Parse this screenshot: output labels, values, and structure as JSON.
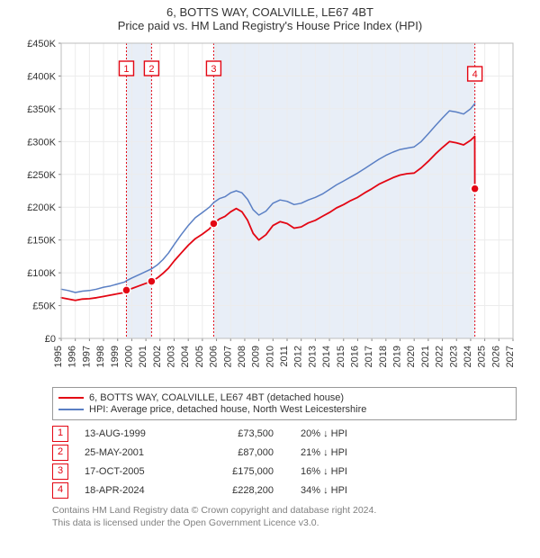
{
  "title_line1": "6, BOTTS WAY, COALVILLE, LE67 4BT",
  "title_line2": "Price paid vs. HM Land Registry's House Price Index (HPI)",
  "chart": {
    "type": "line",
    "x_domain": [
      1995,
      2027
    ],
    "y_domain": [
      0,
      450000
    ],
    "y_ticks": [
      0,
      50000,
      100000,
      150000,
      200000,
      250000,
      300000,
      350000,
      400000,
      450000
    ],
    "y_tick_labels": [
      "£0",
      "£50K",
      "£100K",
      "£150K",
      "£200K",
      "£250K",
      "£300K",
      "£350K",
      "£400K",
      "£450K"
    ],
    "x_ticks": [
      1995,
      1996,
      1997,
      1998,
      1999,
      2000,
      2001,
      2002,
      2003,
      2004,
      2005,
      2006,
      2007,
      2008,
      2009,
      2010,
      2011,
      2012,
      2013,
      2014,
      2015,
      2016,
      2017,
      2018,
      2019,
      2020,
      2021,
      2022,
      2023,
      2024,
      2025,
      2026,
      2027
    ],
    "grid_color": "#ececec",
    "plot_bg": "#ffffff",
    "band_color": "#e8eef7",
    "series": {
      "hpi": {
        "color": "#5a7fc4",
        "width": 1.5,
        "points": [
          [
            1995.0,
            75000
          ],
          [
            1995.5,
            73000
          ],
          [
            1996.0,
            70000
          ],
          [
            1996.5,
            72000
          ],
          [
            1997.0,
            73000
          ],
          [
            1997.5,
            75000
          ],
          [
            1998.0,
            78000
          ],
          [
            1998.5,
            80000
          ],
          [
            1999.0,
            83000
          ],
          [
            1999.5,
            86000
          ],
          [
            1999.62,
            88000
          ],
          [
            2000.0,
            92000
          ],
          [
            2000.5,
            97000
          ],
          [
            2001.0,
            102000
          ],
          [
            2001.4,
            106000
          ],
          [
            2001.8,
            112000
          ],
          [
            2002.2,
            120000
          ],
          [
            2002.6,
            130000
          ],
          [
            2003.0,
            143000
          ],
          [
            2003.5,
            158000
          ],
          [
            2004.0,
            172000
          ],
          [
            2004.5,
            184000
          ],
          [
            2005.0,
            192000
          ],
          [
            2005.5,
            200000
          ],
          [
            2005.8,
            207000
          ],
          [
            2006.2,
            213000
          ],
          [
            2006.6,
            216000
          ],
          [
            2007.0,
            222000
          ],
          [
            2007.4,
            225000
          ],
          [
            2007.8,
            222000
          ],
          [
            2008.2,
            212000
          ],
          [
            2008.6,
            196000
          ],
          [
            2009.0,
            188000
          ],
          [
            2009.5,
            194000
          ],
          [
            2010.0,
            206000
          ],
          [
            2010.5,
            211000
          ],
          [
            2011.0,
            209000
          ],
          [
            2011.5,
            204000
          ],
          [
            2012.0,
            206000
          ],
          [
            2012.5,
            211000
          ],
          [
            2013.0,
            215000
          ],
          [
            2013.5,
            220000
          ],
          [
            2014.0,
            227000
          ],
          [
            2014.5,
            234000
          ],
          [
            2015.0,
            240000
          ],
          [
            2015.5,
            246000
          ],
          [
            2016.0,
            252000
          ],
          [
            2016.5,
            259000
          ],
          [
            2017.0,
            266000
          ],
          [
            2017.5,
            273000
          ],
          [
            2018.0,
            279000
          ],
          [
            2018.5,
            284000
          ],
          [
            2019.0,
            288000
          ],
          [
            2019.5,
            290000
          ],
          [
            2020.0,
            292000
          ],
          [
            2020.5,
            300000
          ],
          [
            2021.0,
            312000
          ],
          [
            2021.5,
            324000
          ],
          [
            2022.0,
            336000
          ],
          [
            2022.5,
            347000
          ],
          [
            2023.0,
            345000
          ],
          [
            2023.5,
            342000
          ],
          [
            2024.0,
            350000
          ],
          [
            2024.3,
            358000
          ]
        ]
      },
      "price": {
        "color": "#e30613",
        "width": 1.8,
        "points": [
          [
            1995.0,
            62000
          ],
          [
            1995.5,
            60000
          ],
          [
            1996.0,
            58000
          ],
          [
            1996.5,
            60000
          ],
          [
            1997.0,
            60500
          ],
          [
            1997.5,
            62000
          ],
          [
            1998.0,
            64000
          ],
          [
            1998.5,
            66000
          ],
          [
            1999.0,
            68000
          ],
          [
            1999.5,
            70000
          ],
          [
            1999.62,
            73500
          ],
          [
            2000.0,
            76000
          ],
          [
            2000.5,
            80000
          ],
          [
            2001.0,
            84000
          ],
          [
            2001.4,
            87000
          ],
          [
            2001.8,
            92000
          ],
          [
            2002.2,
            99000
          ],
          [
            2002.6,
            107000
          ],
          [
            2003.0,
            118000
          ],
          [
            2003.5,
            130000
          ],
          [
            2004.0,
            142000
          ],
          [
            2004.5,
            152000
          ],
          [
            2005.0,
            159000
          ],
          [
            2005.5,
            167000
          ],
          [
            2005.8,
            175000
          ],
          [
            2006.2,
            182000
          ],
          [
            2006.6,
            186000
          ],
          [
            2007.0,
            193000
          ],
          [
            2007.4,
            198000
          ],
          [
            2007.8,
            193000
          ],
          [
            2008.2,
            180000
          ],
          [
            2008.6,
            160000
          ],
          [
            2009.0,
            150000
          ],
          [
            2009.5,
            158000
          ],
          [
            2010.0,
            172000
          ],
          [
            2010.5,
            178000
          ],
          [
            2011.0,
            175000
          ],
          [
            2011.5,
            168000
          ],
          [
            2012.0,
            170000
          ],
          [
            2012.5,
            176000
          ],
          [
            2013.0,
            180000
          ],
          [
            2013.5,
            186000
          ],
          [
            2014.0,
            192000
          ],
          [
            2014.5,
            199000
          ],
          [
            2015.0,
            204000
          ],
          [
            2015.5,
            210000
          ],
          [
            2016.0,
            215000
          ],
          [
            2016.5,
            222000
          ],
          [
            2017.0,
            228000
          ],
          [
            2017.5,
            235000
          ],
          [
            2018.0,
            240000
          ],
          [
            2018.5,
            245000
          ],
          [
            2019.0,
            249000
          ],
          [
            2019.5,
            251000
          ],
          [
            2020.0,
            252000
          ],
          [
            2020.5,
            260000
          ],
          [
            2021.0,
            270000
          ],
          [
            2021.5,
            281000
          ],
          [
            2022.0,
            291000
          ],
          [
            2022.5,
            300000
          ],
          [
            2023.0,
            298000
          ],
          [
            2023.5,
            295000
          ],
          [
            2024.0,
            302000
          ],
          [
            2024.29,
            308000
          ],
          [
            2024.3,
            228200
          ]
        ]
      }
    },
    "sale_markers": [
      {
        "n": "1",
        "x": 1999.62,
        "y": 73500
      },
      {
        "n": "2",
        "x": 2001.4,
        "y": 87000
      },
      {
        "n": "3",
        "x": 2005.8,
        "y": 175000
      },
      {
        "n": "4",
        "x": 2024.3,
        "y": 228200
      }
    ],
    "sale_marker_color": "#e30613",
    "sale_marker_fill": "#ffffff"
  },
  "legend": {
    "price": {
      "color": "#e30613",
      "label": "6, BOTTS WAY, COALVILLE, LE67 4BT (detached house)"
    },
    "hpi": {
      "color": "#5a7fc4",
      "label": "HPI: Average price, detached house, North West Leicestershire"
    }
  },
  "sales": [
    {
      "n": "1",
      "date": "13-AUG-1999",
      "price": "£73,500",
      "diff": "20% ↓ HPI"
    },
    {
      "n": "2",
      "date": "25-MAY-2001",
      "price": "£87,000",
      "diff": "21% ↓ HPI"
    },
    {
      "n": "3",
      "date": "17-OCT-2005",
      "price": "£175,000",
      "diff": "16% ↓ HPI"
    },
    {
      "n": "4",
      "date": "18-APR-2024",
      "price": "£228,200",
      "diff": "34% ↓ HPI"
    }
  ],
  "footer_line1": "Contains HM Land Registry data © Crown copyright and database right 2024.",
  "footer_line2": "This data is licensed under the Open Government Licence v3.0."
}
